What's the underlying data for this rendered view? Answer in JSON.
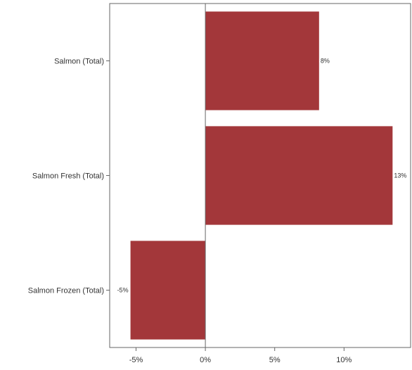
{
  "chart_data": {
    "type": "bar",
    "orientation": "horizontal",
    "categories": [
      "Salmon (Total)",
      "Salmon Fresh (Total)",
      "Salmon Frozen (Total)"
    ],
    "values": [
      8.2,
      13.5,
      -5.4
    ],
    "data_labels": [
      "8%",
      "13%",
      "-5%"
    ],
    "x_ticks": [
      -5,
      0,
      5,
      10
    ],
    "x_tick_labels": [
      "-5%",
      "0%",
      "5%",
      "10%"
    ],
    "xlim": [
      -6.9,
      14.8
    ],
    "title": "",
    "xlabel": "",
    "ylabel": "",
    "grid": false,
    "legend": "none",
    "bar_color": "#a3373a",
    "axis_color": "#666666"
  }
}
